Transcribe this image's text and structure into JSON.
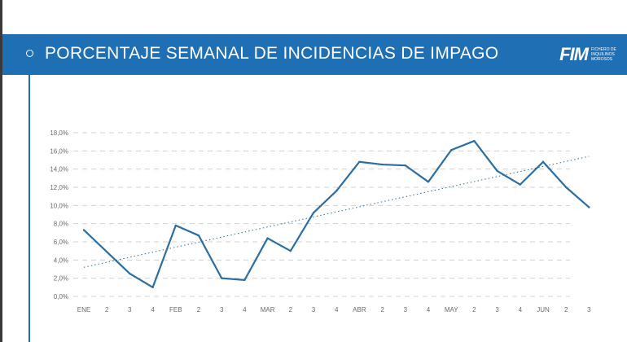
{
  "header": {
    "title": "PORCENTAJE SEMANAL DE INCIDENCIAS DE IMPAGO",
    "logo_mark": "FIM",
    "logo_text": "FICHERO DE INQUILINOS MOROSOS"
  },
  "colors": {
    "banner": "#1f6fb5",
    "line": "#2b6ea3",
    "trend": "#2b6ea3",
    "grid": "#d0d0d0"
  },
  "chart_data": {
    "type": "line",
    "title": "",
    "xlabel": "",
    "ylabel": "",
    "ylim": [
      0,
      18
    ],
    "grid": true,
    "y_ticks": [
      "0,0%",
      "2,0%",
      "4,0%",
      "6,0%",
      "8,0%",
      "10,0%",
      "12,0%",
      "14,0%",
      "16,0%",
      "18,0%"
    ],
    "categories": [
      "ENE",
      "2",
      "3",
      "4",
      "FEB",
      "2",
      "3",
      "4",
      "MAR",
      "2",
      "3",
      "4",
      "ABR",
      "2",
      "3",
      "4",
      "MAY",
      "2",
      "3",
      "4",
      "JUN",
      "2",
      "3"
    ],
    "series": [
      {
        "values": [
          7.3,
          4.9,
          2.5,
          1.0,
          7.8,
          6.7,
          2.0,
          1.8,
          6.4,
          5.0,
          9.2,
          11.6,
          14.8,
          14.5,
          14.4,
          12.6,
          16.1,
          17.1,
          13.8,
          12.3,
          14.8,
          12.0,
          9.8
        ]
      }
    ],
    "trendline": {
      "type": "linear",
      "style": "dotted",
      "start": 3.2,
      "end": 15.4
    }
  }
}
